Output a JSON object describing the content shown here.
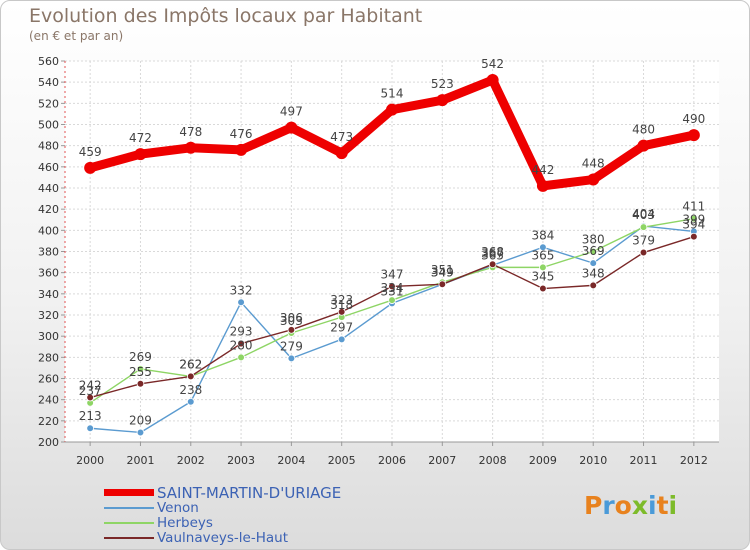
{
  "header": {
    "title": "Evolution des Impôts locaux par Habitant",
    "subtitle": "(en € et par an)"
  },
  "brand": {
    "logo_text": "Proxiti",
    "letter_colors": [
      "#e8821e",
      "#4a9ad8",
      "#e8821e",
      "#7dbb2a",
      "#4a9ad8",
      "#e8821e",
      "#7dbb2a"
    ]
  },
  "chart_data": {
    "type": "line",
    "title": "Evolution des Impôts locaux par Habitant",
    "subtitle": "(en € et par an)",
    "xlabel": "",
    "ylabel": "",
    "x": [
      "2000",
      "2001",
      "2002",
      "2003",
      "2004",
      "2005",
      "2006",
      "2007",
      "2008",
      "2009",
      "2010",
      "2011",
      "2012"
    ],
    "ylim": [
      200,
      560
    ],
    "yticks": [
      200,
      220,
      240,
      260,
      280,
      300,
      320,
      340,
      360,
      380,
      400,
      420,
      440,
      460,
      480,
      500,
      520,
      540,
      560
    ],
    "grid": true,
    "legend": "bottom-left",
    "series": [
      {
        "name": "SAINT-MARTIN-D'URIAGE",
        "color": "#ee0000",
        "values": [
          459,
          472,
          478,
          476,
          497,
          473,
          514,
          523,
          542,
          442,
          448,
          480,
          490
        ],
        "labels": [
          "459",
          "472",
          "478",
          "476",
          "497",
          "473",
          "514",
          "523",
          "542",
          "442",
          "448",
          "480",
          "490"
        ]
      },
      {
        "name": "Venon",
        "color": "#5b9bd0",
        "values": [
          213,
          209,
          238,
          332,
          279,
          297,
          331,
          349,
          367,
          384,
          369,
          404,
          399
        ],
        "labels": [
          "213",
          "209",
          "238",
          "332",
          "279",
          "297",
          "331",
          "349",
          "367",
          "384",
          "369",
          "404",
          "399"
        ]
      },
      {
        "name": "Herbeys",
        "color": "#8ed565",
        "values": [
          237,
          269,
          262,
          280,
          303,
          318,
          334,
          351,
          365,
          365,
          380,
          403,
          411
        ],
        "labels": [
          "237",
          "269",
          "262",
          "280",
          "303",
          "318",
          "334",
          "351",
          "365",
          "365",
          "380",
          "403",
          "411"
        ]
      },
      {
        "name": "Vaulnaveys-le-Haut",
        "color": "#7a2828",
        "values": [
          242,
          255,
          262,
          293,
          306,
          323,
          347,
          349,
          368,
          345,
          348,
          379,
          394
        ],
        "labels": [
          "242",
          "255",
          "262",
          "293",
          "306",
          "323",
          "347",
          "349",
          "368",
          "345",
          "348",
          "379",
          "394"
        ]
      }
    ]
  }
}
